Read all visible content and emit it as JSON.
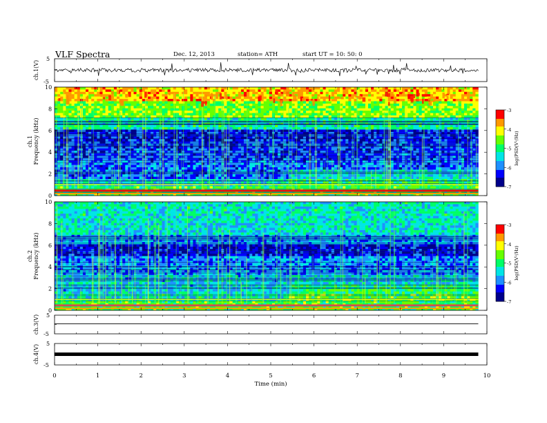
{
  "header": {
    "title": "VLF  Spectra",
    "date": "Dec. 12, 2013",
    "station": "station= ATH",
    "start": "start  UT  =    10: 50: 0"
  },
  "chart_data": [
    {
      "type": "line",
      "panel": "ch1-waveform",
      "ylabel": "ch.1(V)",
      "yticks": [
        "5",
        "-5"
      ],
      "ylim": [
        -5,
        5
      ],
      "xlim": [
        0,
        10
      ],
      "series_note": "noisy waveform, approx. amplitude ±0.5 V with spikes to ±2 V, data from 0 to 9.8 min"
    },
    {
      "type": "heatmap",
      "panel": "ch1-spectrogram",
      "ylabel": "ch.1\nFrequency  (kHz)",
      "ylabel_channel": "ch.1",
      "ylabel_freq": "Frequency  (kHz)",
      "yticks": [
        "10",
        "8",
        "6",
        "4",
        "2",
        "0"
      ],
      "ylim": [
        0,
        10
      ],
      "xlim": [
        0,
        10
      ],
      "data_end_min": 9.8,
      "colorbar": {
        "label": "log(PSD(V²/Hz)",
        "ticks": [
          "-3",
          "-4",
          "-5",
          "-6",
          "-7"
        ],
        "range": [
          -7,
          -3
        ]
      }
    },
    {
      "type": "heatmap",
      "panel": "ch2-spectrogram",
      "ylabel_channel": "ch.2",
      "ylabel_freq": "Frequency  (kHz)",
      "yticks": [
        "10",
        "8",
        "6",
        "4",
        "2",
        "0"
      ],
      "ylim": [
        0,
        10
      ],
      "xlim": [
        0,
        10
      ],
      "data_end_min": 9.8,
      "colorbar": {
        "label": "log(PSD(V²/Hz)",
        "ticks": [
          "-3",
          "-4",
          "-5",
          "-6",
          "-7"
        ],
        "range": [
          -7,
          -3
        ]
      }
    },
    {
      "type": "line",
      "panel": "ch3-waveform",
      "ylabel": "ch.3(V)",
      "yticks": [
        "5",
        "-5"
      ],
      "ylim": [
        -5,
        5
      ],
      "xlim": [
        0,
        10
      ],
      "series_note": "flat line near 0 V"
    },
    {
      "type": "line",
      "panel": "ch4-waveform",
      "ylabel": "ch.4(V)",
      "yticks": [
        "5",
        "-5"
      ],
      "ylim": [
        -5,
        5
      ],
      "xlim": [
        0,
        10
      ],
      "series_note": "thick flat line near 0 V"
    }
  ],
  "xaxis": {
    "label": "Time  (min)",
    "ticks": [
      "0",
      "1",
      "2",
      "3",
      "4",
      "5",
      "6",
      "7",
      "8",
      "9",
      "10"
    ]
  },
  "colors": {
    "colormap": [
      "#00008b",
      "#0000ff",
      "#1e90ff",
      "#00e5e5",
      "#00ff66",
      "#66ff00",
      "#ffff00",
      "#ff9900",
      "#ff0000",
      "#ffffff"
    ]
  }
}
